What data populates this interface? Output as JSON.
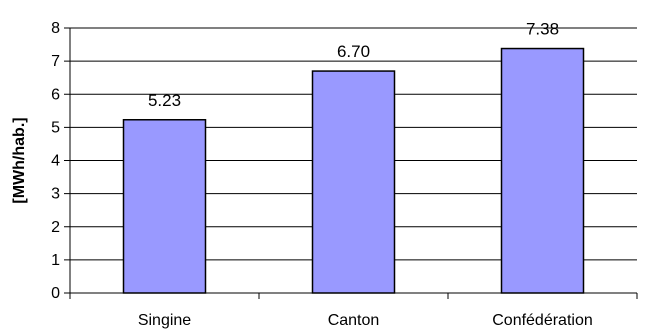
{
  "chart_data": {
    "type": "bar",
    "categories": [
      "Singine",
      "Canton",
      "Confédération"
    ],
    "values": [
      5.23,
      6.7,
      7.38
    ],
    "value_labels": [
      "5.23",
      "6.70",
      "7.38"
    ],
    "ylabel": "[MWh/hab.]",
    "xlabel": "",
    "ylim": [
      0,
      8
    ],
    "yticks": [
      "0",
      "1",
      "2",
      "3",
      "4",
      "5",
      "6",
      "7",
      "8"
    ],
    "grid": true,
    "colors": {
      "bar_fill": "#9999ff",
      "bar_stroke": "#000000",
      "grid": "#000000"
    }
  }
}
